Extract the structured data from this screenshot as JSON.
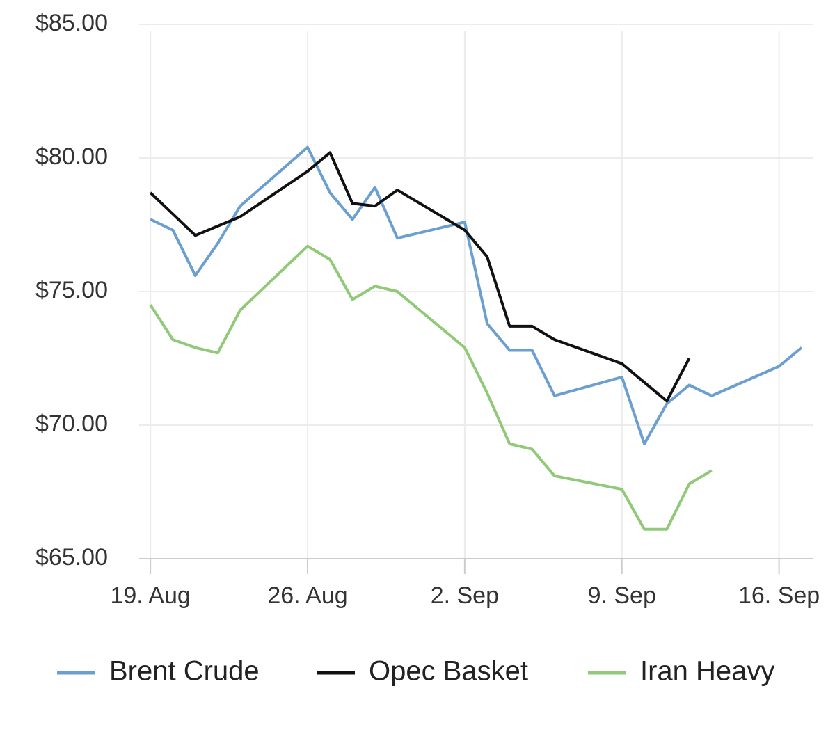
{
  "chart_data": {
    "type": "line",
    "xlim": [
      -0.5,
      29.5
    ],
    "xticks": [
      {
        "value": 0,
        "label": "19. Aug"
      },
      {
        "value": 7,
        "label": "26. Aug"
      },
      {
        "value": 14,
        "label": "2. Sep"
      },
      {
        "value": 21,
        "label": "9. Sep"
      },
      {
        "value": 28,
        "label": "16. Sep"
      }
    ],
    "ylim": [
      65,
      85
    ],
    "yticks": [
      {
        "value": 65,
        "label": "$65.00"
      },
      {
        "value": 70,
        "label": "$70.00"
      },
      {
        "value": 75,
        "label": "$75.00"
      },
      {
        "value": 80,
        "label": "$80.00"
      },
      {
        "value": 85,
        "label": "$85.00"
      }
    ],
    "grid": true,
    "legend": "bottom",
    "series": [
      {
        "name": "Brent Crude",
        "color": "#6a9fcf",
        "x": [
          0,
          1,
          2,
          3,
          4,
          7,
          8,
          9,
          10,
          11,
          14,
          15,
          16,
          17,
          18,
          21,
          22,
          23,
          24,
          25,
          28,
          29
        ],
        "values": [
          77.7,
          77.3,
          75.6,
          76.8,
          78.2,
          80.4,
          78.7,
          77.7,
          78.9,
          77.0,
          77.6,
          73.8,
          72.8,
          72.8,
          71.1,
          71.8,
          69.3,
          70.8,
          71.5,
          71.1,
          72.2,
          72.9
        ]
      },
      {
        "name": "Opec Basket",
        "color": "#111111",
        "x": [
          0,
          2,
          4,
          7,
          8,
          9,
          10,
          11,
          14,
          15,
          16,
          17,
          18,
          21,
          23,
          24
        ],
        "values": [
          78.7,
          77.1,
          77.8,
          79.5,
          80.2,
          78.3,
          78.2,
          78.8,
          77.3,
          76.3,
          73.7,
          73.7,
          73.2,
          72.3,
          70.9,
          72.5
        ]
      },
      {
        "name": "Iran Heavy",
        "color": "#90c978",
        "x": [
          0,
          1,
          2,
          3,
          4,
          7,
          8,
          9,
          10,
          11,
          14,
          15,
          16,
          17,
          18,
          21,
          22,
          23,
          24,
          25
        ],
        "values": [
          74.5,
          73.2,
          72.9,
          72.7,
          74.3,
          76.7,
          76.2,
          74.7,
          75.2,
          75.0,
          72.9,
          71.2,
          69.3,
          69.1,
          68.1,
          67.6,
          66.1,
          66.1,
          67.8,
          68.3
        ]
      }
    ]
  }
}
